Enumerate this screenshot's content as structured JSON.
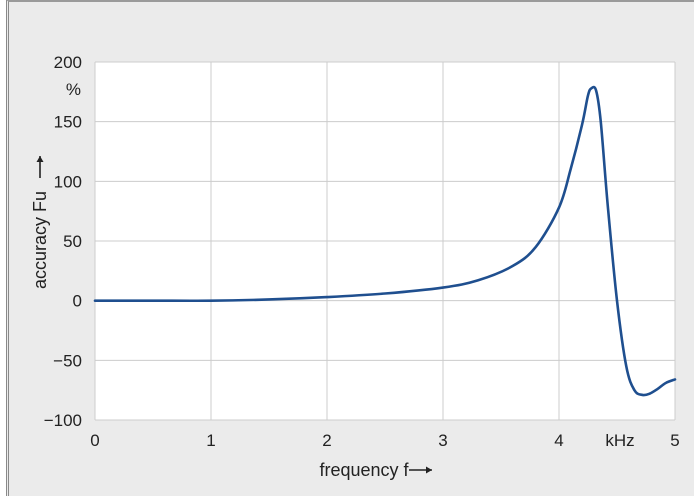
{
  "chart_data": {
    "type": "line",
    "title": "",
    "xlabel": "frequency f",
    "ylabel": "accuracy Fu",
    "xunit": "kHz",
    "yunit": "%",
    "xlim": [
      0,
      5
    ],
    "ylim": [
      -100,
      200
    ],
    "xticks": [
      "0",
      "1",
      "2",
      "3",
      "4",
      "5"
    ],
    "yticks": [
      "200",
      "150",
      "100",
      "50",
      "0",
      "−50",
      "−100"
    ],
    "grid": true,
    "colors": {
      "line": "#1f4f8f",
      "grid": "#cccccc",
      "plot_bg": "#ffffff",
      "frame_bg": "#ebebeb"
    },
    "series": [
      {
        "x": [
          0,
          0.5,
          1.0,
          1.5,
          2.0,
          2.5,
          3.0,
          3.3,
          3.6,
          3.8,
          4.0,
          4.1,
          4.2,
          4.25,
          4.28,
          4.32,
          4.36,
          4.42,
          4.5,
          4.58,
          4.65,
          4.72,
          4.78,
          4.85,
          4.92,
          5.0
        ],
        "y": [
          0,
          0,
          0,
          1,
          3,
          6,
          11,
          17,
          29,
          45,
          78,
          110,
          148,
          172,
          178,
          176,
          150,
          80,
          0,
          -55,
          -75,
          -79,
          -78,
          -74,
          -69,
          -66
        ]
      }
    ]
  }
}
